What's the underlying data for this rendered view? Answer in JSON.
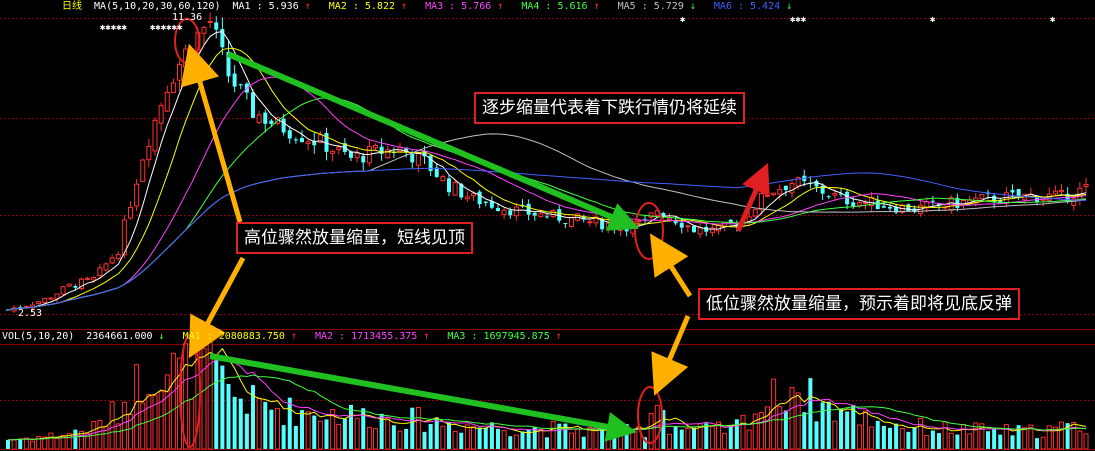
{
  "price_panel": {
    "period_label": "日线",
    "ma_label": "MA(5,10,20,30,60,120)",
    "ma_values": [
      {
        "name": "MA1",
        "value": "5.936",
        "arrow": "↑",
        "color": "#ffffff"
      },
      {
        "name": "MA2",
        "value": "5.822",
        "arrow": "↑",
        "color": "#ffff00"
      },
      {
        "name": "MA3",
        "value": "5.766",
        "arrow": "↑",
        "color": "#ff40ff"
      },
      {
        "name": "MA4",
        "value": "5.616",
        "arrow": "↑",
        "color": "#40ff40"
      },
      {
        "name": "MA5",
        "value": "5.729",
        "arrow": "↓",
        "color": "#c0c0c0"
      },
      {
        "name": "MA6",
        "value": "5.424",
        "arrow": "↓",
        "color": "#4060ff"
      }
    ],
    "high_price": "11.36",
    "low_price": "2.53"
  },
  "volume_panel": {
    "vol_label": "VOL(5,10,20)",
    "vol_value": "2364661.000",
    "vol_arrow": "↓",
    "ma_values": [
      {
        "name": "MA1",
        "value": "2080883.750",
        "arrow": "↑",
        "color": "#ffff00"
      },
      {
        "name": "MA2",
        "value": "1713455.375",
        "arrow": "↑",
        "color": "#ff40ff"
      },
      {
        "name": "MA3",
        "value": "1697945.875",
        "arrow": "↑",
        "color": "#40ff40"
      }
    ]
  },
  "annotations": {
    "top_high": "高位骤然放量缩量，短线见顶",
    "continuing_decline": "逐步缩量代表着下跌行情仍将延续",
    "bottom_rebound": "低位骤然放量缩量，预示着即将见底反弹"
  },
  "colors": {
    "up_candle": "#ff3030",
    "down_candle": "#54ffff",
    "grid": "#8b0000",
    "arrow_orange": "#ffb000",
    "arrow_green": "#20c020",
    "arrow_red": "#e02020",
    "circle": "#e02020"
  },
  "chart_data": {
    "type": "candlestick",
    "title": "日线",
    "series": [
      {
        "name": "MA1",
        "type": "line"
      },
      {
        "name": "MA2",
        "type": "line"
      },
      {
        "name": "MA3",
        "type": "line"
      },
      {
        "name": "MA4",
        "type": "line"
      },
      {
        "name": "MA5",
        "type": "line"
      },
      {
        "name": "MA6",
        "type": "line"
      }
    ],
    "price_keypoints": [
      [
        0,
        2.6
      ],
      [
        6,
        2.9
      ],
      [
        10,
        3.3
      ],
      [
        14,
        3.5
      ],
      [
        18,
        4.4
      ],
      [
        22,
        7.2
      ],
      [
        26,
        9.3
      ],
      [
        30,
        10.6
      ],
      [
        33,
        11.2
      ],
      [
        36,
        9.6
      ],
      [
        40,
        8.5
      ],
      [
        44,
        8.1
      ],
      [
        48,
        7.8
      ],
      [
        52,
        7.5
      ],
      [
        56,
        7.1
      ],
      [
        60,
        7.3
      ],
      [
        64,
        7.4
      ],
      [
        68,
        7.0
      ],
      [
        72,
        6.3
      ],
      [
        76,
        5.9
      ],
      [
        80,
        5.7
      ],
      [
        84,
        5.5
      ],
      [
        88,
        5.4
      ],
      [
        92,
        5.3
      ],
      [
        96,
        5.2
      ],
      [
        100,
        5.1
      ],
      [
        104,
        5.15
      ],
      [
        106,
        5.6
      ],
      [
        109,
        5.3
      ],
      [
        112,
        5.0
      ],
      [
        116,
        4.95
      ],
      [
        120,
        5.3
      ],
      [
        124,
        6.1
      ],
      [
        128,
        6.4
      ],
      [
        132,
        6.2
      ],
      [
        136,
        5.9
      ],
      [
        140,
        5.8
      ],
      [
        144,
        5.7
      ],
      [
        148,
        5.6
      ],
      [
        152,
        5.7
      ],
      [
        156,
        5.8
      ],
      [
        160,
        5.9
      ],
      [
        164,
        5.95
      ],
      [
        168,
        6.0
      ],
      [
        172,
        5.95
      ],
      [
        176,
        6.2
      ]
    ],
    "volume_keypoints": [
      [
        0,
        0.25
      ],
      [
        8,
        0.35
      ],
      [
        14,
        0.55
      ],
      [
        18,
        1.0
      ],
      [
        20,
        1.5
      ],
      [
        24,
        2.2
      ],
      [
        28,
        2.0
      ],
      [
        32,
        2.3
      ],
      [
        36,
        1.5
      ],
      [
        40,
        1.2
      ],
      [
        46,
        1.0
      ],
      [
        52,
        0.95
      ],
      [
        60,
        0.85
      ],
      [
        68,
        0.75
      ],
      [
        76,
        0.6
      ],
      [
        84,
        0.55
      ],
      [
        92,
        0.5
      ],
      [
        100,
        0.45
      ],
      [
        104,
        0.5
      ],
      [
        106,
        1.45
      ],
      [
        108,
        0.6
      ],
      [
        112,
        0.5
      ],
      [
        118,
        0.5
      ],
      [
        124,
        1.2
      ],
      [
        128,
        1.7
      ],
      [
        132,
        1.2
      ],
      [
        138,
        0.9
      ],
      [
        146,
        0.6
      ],
      [
        156,
        0.5
      ],
      [
        166,
        0.45
      ],
      [
        176,
        0.6
      ]
    ],
    "y_price": [
      2.53,
      11.36
    ],
    "y_volume": [
      0,
      2.4
    ],
    "grid": true
  }
}
